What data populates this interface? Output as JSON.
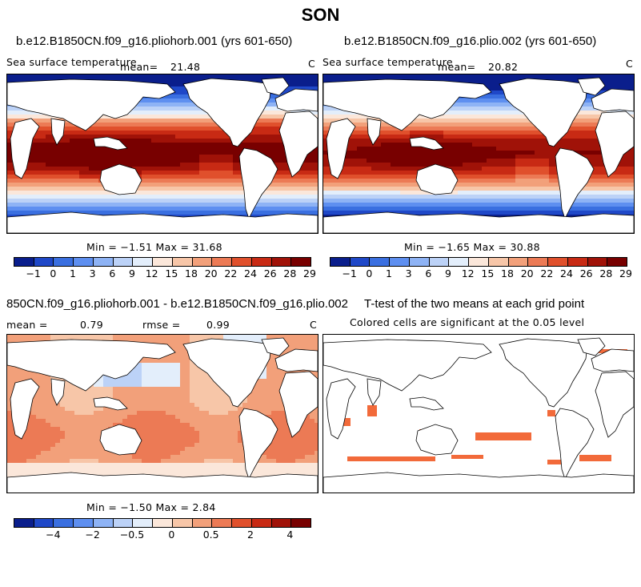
{
  "title": "SON",
  "panels": [
    {
      "title": "b.e12.B1850CN.f09_g16.pliohorb.001 (yrs 601-650)",
      "variable": "Sea surface temperature",
      "mean_label": "mean=",
      "mean": "21.48",
      "units": "C",
      "minmax": "Min =  −1.51 Max =  31.68",
      "colorbar_labels": [
        "−1",
        "0",
        "1",
        "3",
        "6",
        "9",
        "12",
        "15",
        "18",
        "20",
        "22",
        "24",
        "26",
        "28",
        "29"
      ]
    },
    {
      "title": "b.e12.B1850CN.f09_g16.plio.002 (yrs 601-650)",
      "variable": "Sea surface temperature",
      "mean_label": "mean=",
      "mean": "20.82",
      "units": "C",
      "minmax": "Min =  −1.65 Max =  30.88",
      "colorbar_labels": [
        "−1",
        "0",
        "1",
        "3",
        "6",
        "9",
        "12",
        "15",
        "18",
        "20",
        "22",
        "24",
        "26",
        "28",
        "29"
      ]
    },
    {
      "title": "850CN.f09_g16.pliohorb.001 - b.e12.B1850CN.f09_g16.plio.002",
      "mean_label": "mean =",
      "mean": "0.79",
      "rmse_label": "rmse =",
      "rmse": "0.99",
      "units": "C",
      "minmax": "Min =  −1.50 Max =   2.84",
      "colorbar_labels": [
        "−4",
        "−2",
        "−0.5",
        "0",
        "0.5",
        "2",
        "4"
      ]
    },
    {
      "title": "T-test of the two means at each grid point",
      "subtitle": "Colored cells are significant at the 0.05 level"
    }
  ],
  "colors": {
    "abs_scale": [
      "#0a1e8c",
      "#1f48c8",
      "#3a6fe0",
      "#5e8ff0",
      "#8eb3f5",
      "#bcd2f7",
      "#e3eefb",
      "#fbe7da",
      "#f7c6a8",
      "#f2a07a",
      "#ec7a55",
      "#e0502c",
      "#c82a14",
      "#a01208",
      "#780000"
    ],
    "diff_scale": [
      "#0a1e8c",
      "#1f48c8",
      "#3a6fe0",
      "#5e8ff0",
      "#8eb3f5",
      "#bcd2f7",
      "#e3eefb",
      "#fbe7da",
      "#f7c6a8",
      "#f2a07a",
      "#ec7a55",
      "#e0502c",
      "#c82a14",
      "#a01208",
      "#780000"
    ],
    "significant": "#f26a3a",
    "land": "#ffffff"
  }
}
